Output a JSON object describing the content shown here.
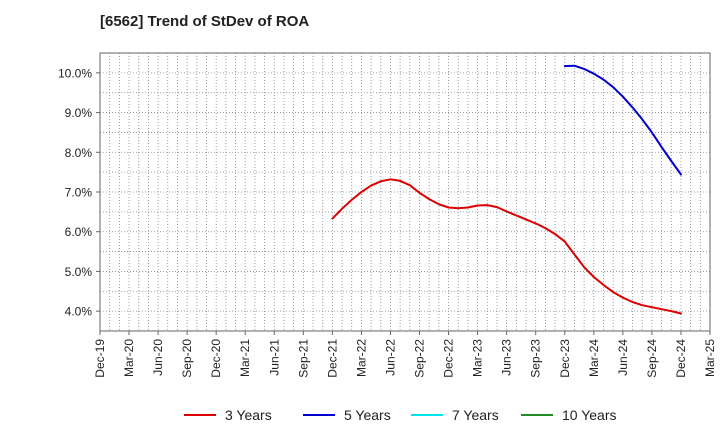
{
  "title": "[6562]  Trend of StDev of ROA",
  "chart_data": {
    "type": "line",
    "title": "[6562]  Trend of StDev of ROA",
    "xlabel": "",
    "ylabel": "",
    "x_ticks": [
      "Dec-19",
      "Mar-20",
      "Jun-20",
      "Sep-20",
      "Dec-20",
      "Mar-21",
      "Jun-21",
      "Sep-21",
      "Dec-21",
      "Mar-22",
      "Jun-22",
      "Sep-22",
      "Dec-22",
      "Mar-23",
      "Jun-23",
      "Sep-23",
      "Dec-23",
      "Mar-24",
      "Jun-24",
      "Sep-24",
      "Dec-24",
      "Mar-25"
    ],
    "y_ticks": [
      "4.0%",
      "5.0%",
      "6.0%",
      "7.0%",
      "8.0%",
      "9.0%",
      "10.0%"
    ],
    "ylim": [
      3.5,
      10.5
    ],
    "grid": true,
    "legend_position": "bottom",
    "series": [
      {
        "name": "3 Years",
        "color": "#dd0000",
        "x": [
          "Dec-21",
          "Jan-22",
          "Feb-22",
          "Mar-22",
          "Apr-22",
          "May-22",
          "Jun-22",
          "Jul-22",
          "Aug-22",
          "Sep-22",
          "Oct-22",
          "Nov-22",
          "Dec-22",
          "Jan-23",
          "Feb-23",
          "Mar-23",
          "Apr-23",
          "May-23",
          "Jun-23",
          "Jul-23",
          "Aug-23",
          "Sep-23",
          "Oct-23",
          "Nov-23",
          "Dec-23",
          "Jan-24",
          "Feb-24",
          "Mar-24",
          "Apr-24",
          "May-24",
          "Jun-24",
          "Jul-24",
          "Aug-24",
          "Sep-24",
          "Oct-24",
          "Nov-24",
          "Dec-24"
        ],
        "values": [
          6.33,
          6.58,
          6.8,
          7.0,
          7.16,
          7.27,
          7.32,
          7.28,
          7.17,
          6.98,
          6.82,
          6.69,
          6.61,
          6.59,
          6.61,
          6.66,
          6.67,
          6.62,
          6.51,
          6.41,
          6.31,
          6.21,
          6.09,
          5.94,
          5.75,
          5.43,
          5.11,
          4.86,
          4.66,
          4.48,
          4.34,
          4.23,
          4.15,
          4.1,
          4.05,
          4.0,
          3.94
        ]
      },
      {
        "name": "5 Years",
        "color": "#0000cc",
        "x": [
          "Dec-23",
          "Jan-24",
          "Feb-24",
          "Mar-24",
          "Apr-24",
          "May-24",
          "Jun-24",
          "Jul-24",
          "Aug-24",
          "Sep-24",
          "Oct-24",
          "Nov-24",
          "Dec-24"
        ],
        "values": [
          10.17,
          10.18,
          10.1,
          9.98,
          9.83,
          9.64,
          9.4,
          9.13,
          8.83,
          8.5,
          8.13,
          7.78,
          7.44
        ]
      },
      {
        "name": "7 Years",
        "color": "#00e5ee",
        "x": [],
        "values": []
      },
      {
        "name": "10 Years",
        "color": "#228b22",
        "x": [],
        "values": []
      }
    ]
  }
}
